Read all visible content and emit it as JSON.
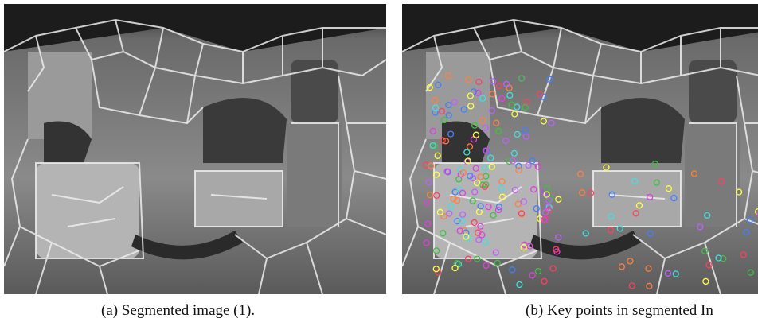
{
  "figure": {
    "panels": [
      {
        "caption": "(a) Segmented image (1)."
      },
      {
        "caption": "(b) Key points in segmented In"
      }
    ]
  }
}
